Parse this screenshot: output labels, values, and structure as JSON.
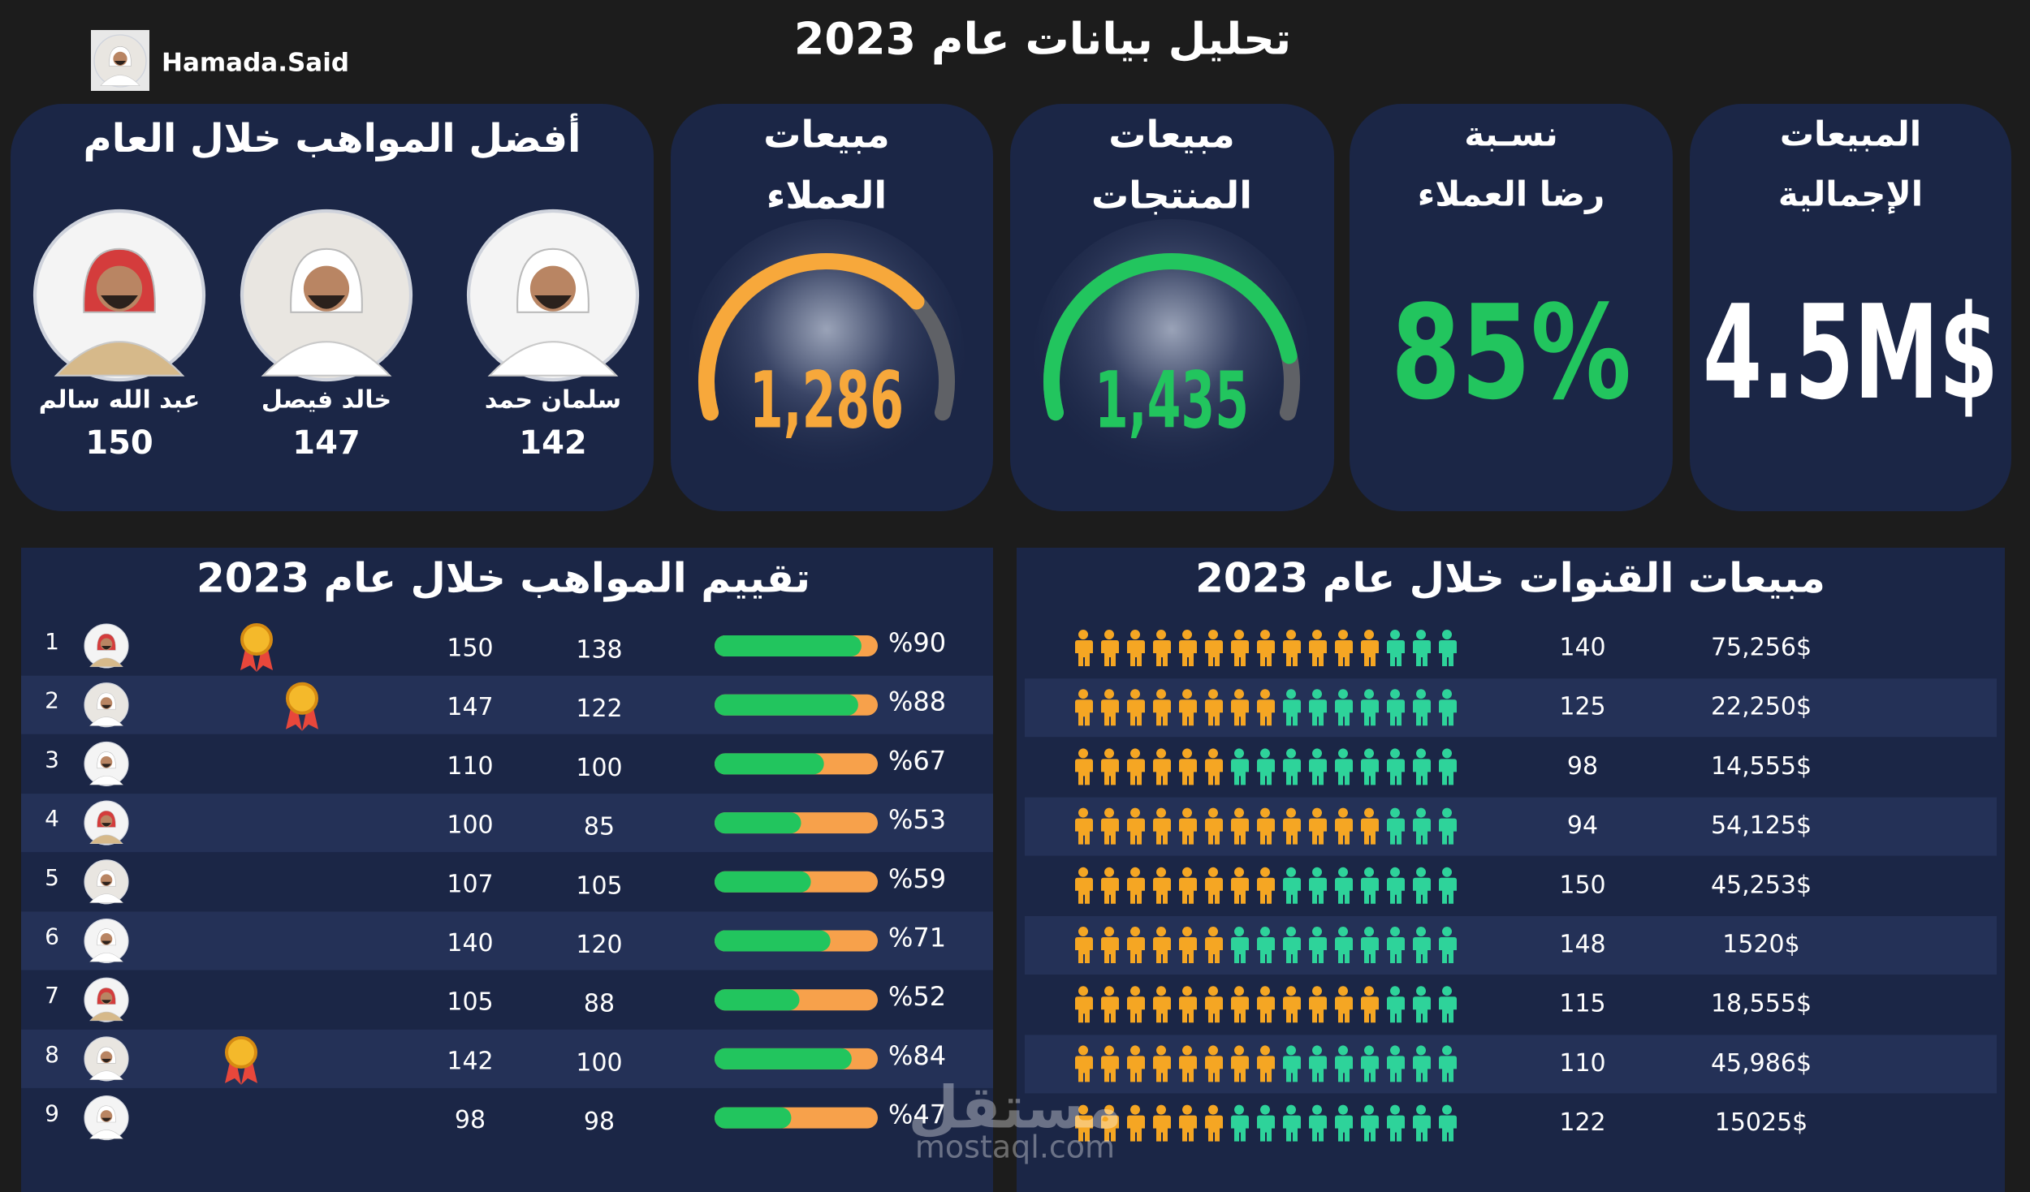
{
  "header": {
    "title": "تحليل بيانات عام 2023",
    "author": "Hamada.Said"
  },
  "kpis": {
    "top_talents": {
      "title": "أفضل المواهب خلال العام",
      "people": [
        {
          "name": "عبد الله سالم",
          "score": 150
        },
        {
          "name": "خالد فيصل",
          "score": 147
        },
        {
          "name": "سلمان حمد",
          "score": 142
        }
      ]
    },
    "customer_sales": {
      "title_lines": [
        "مبيعات",
        "العملاء"
      ],
      "value": "1,286",
      "color": "#f7a83b"
    },
    "product_sales": {
      "title_lines": [
        "مبيعات",
        "المنتجات"
      ],
      "value": "1,435",
      "color": "#22c55e"
    },
    "satisfaction": {
      "title_lines": [
        "نسـبة",
        "رضا العملاء"
      ],
      "value": "85%",
      "color": "#22c55e"
    },
    "total_sales": {
      "title_lines": [
        "المبيعات",
        "الإجمالية"
      ],
      "value": "4.5M$",
      "color": "#ffffff"
    }
  },
  "talent_ratings": {
    "title": "تقييم المواهب خلال عام 2023",
    "rows": [
      {
        "rank": 1,
        "medal": true,
        "a": 150,
        "b": 138,
        "percent": 90,
        "percent_label": "%90"
      },
      {
        "rank": 2,
        "medal": true,
        "a": 147,
        "b": 122,
        "percent": 88,
        "percent_label": "%88"
      },
      {
        "rank": 3,
        "medal": false,
        "a": 110,
        "b": 100,
        "percent": 67,
        "percent_label": "%67"
      },
      {
        "rank": 4,
        "medal": false,
        "a": 100,
        "b": 85,
        "percent": 53,
        "percent_label": "%53"
      },
      {
        "rank": 5,
        "medal": false,
        "a": 107,
        "b": 105,
        "percent": 59,
        "percent_label": "%59"
      },
      {
        "rank": 6,
        "medal": false,
        "a": 140,
        "b": 120,
        "percent": 71,
        "percent_label": "%71"
      },
      {
        "rank": 7,
        "medal": false,
        "a": 105,
        "b": 88,
        "percent": 52,
        "percent_label": "%52"
      },
      {
        "rank": 8,
        "medal": true,
        "a": 142,
        "b": 100,
        "percent": 84,
        "percent_label": "%84"
      },
      {
        "rank": 9,
        "medal": false,
        "a": 98,
        "b": 98,
        "percent": 47,
        "percent_label": "%47"
      }
    ]
  },
  "channel_sales": {
    "title": "مبيعات القنوات خلال عام 2023",
    "rows": [
      {
        "count": 140,
        "amount": "75,256$",
        "orange_icons": 12,
        "green_icons": 3
      },
      {
        "count": 125,
        "amount": "22,250$",
        "orange_icons": 8,
        "green_icons": 7
      },
      {
        "count": 98,
        "amount": "14,555$",
        "orange_icons": 6,
        "green_icons": 9
      },
      {
        "count": 94,
        "amount": "54,125$",
        "orange_icons": 12,
        "green_icons": 3
      },
      {
        "count": 150,
        "amount": "45,253$",
        "orange_icons": 8,
        "green_icons": 7
      },
      {
        "count": 148,
        "amount": "1520$",
        "orange_icons": 6,
        "green_icons": 9
      },
      {
        "count": 115,
        "amount": "18,555$",
        "orange_icons": 12,
        "green_icons": 3
      },
      {
        "count": 110,
        "amount": "45,986$",
        "orange_icons": 8,
        "green_icons": 7
      },
      {
        "count": 122,
        "amount": "15025$",
        "orange_icons": 6,
        "green_icons": 9
      }
    ]
  },
  "watermark": {
    "arabic": "مستقل",
    "latin": "mostaql.com"
  }
}
